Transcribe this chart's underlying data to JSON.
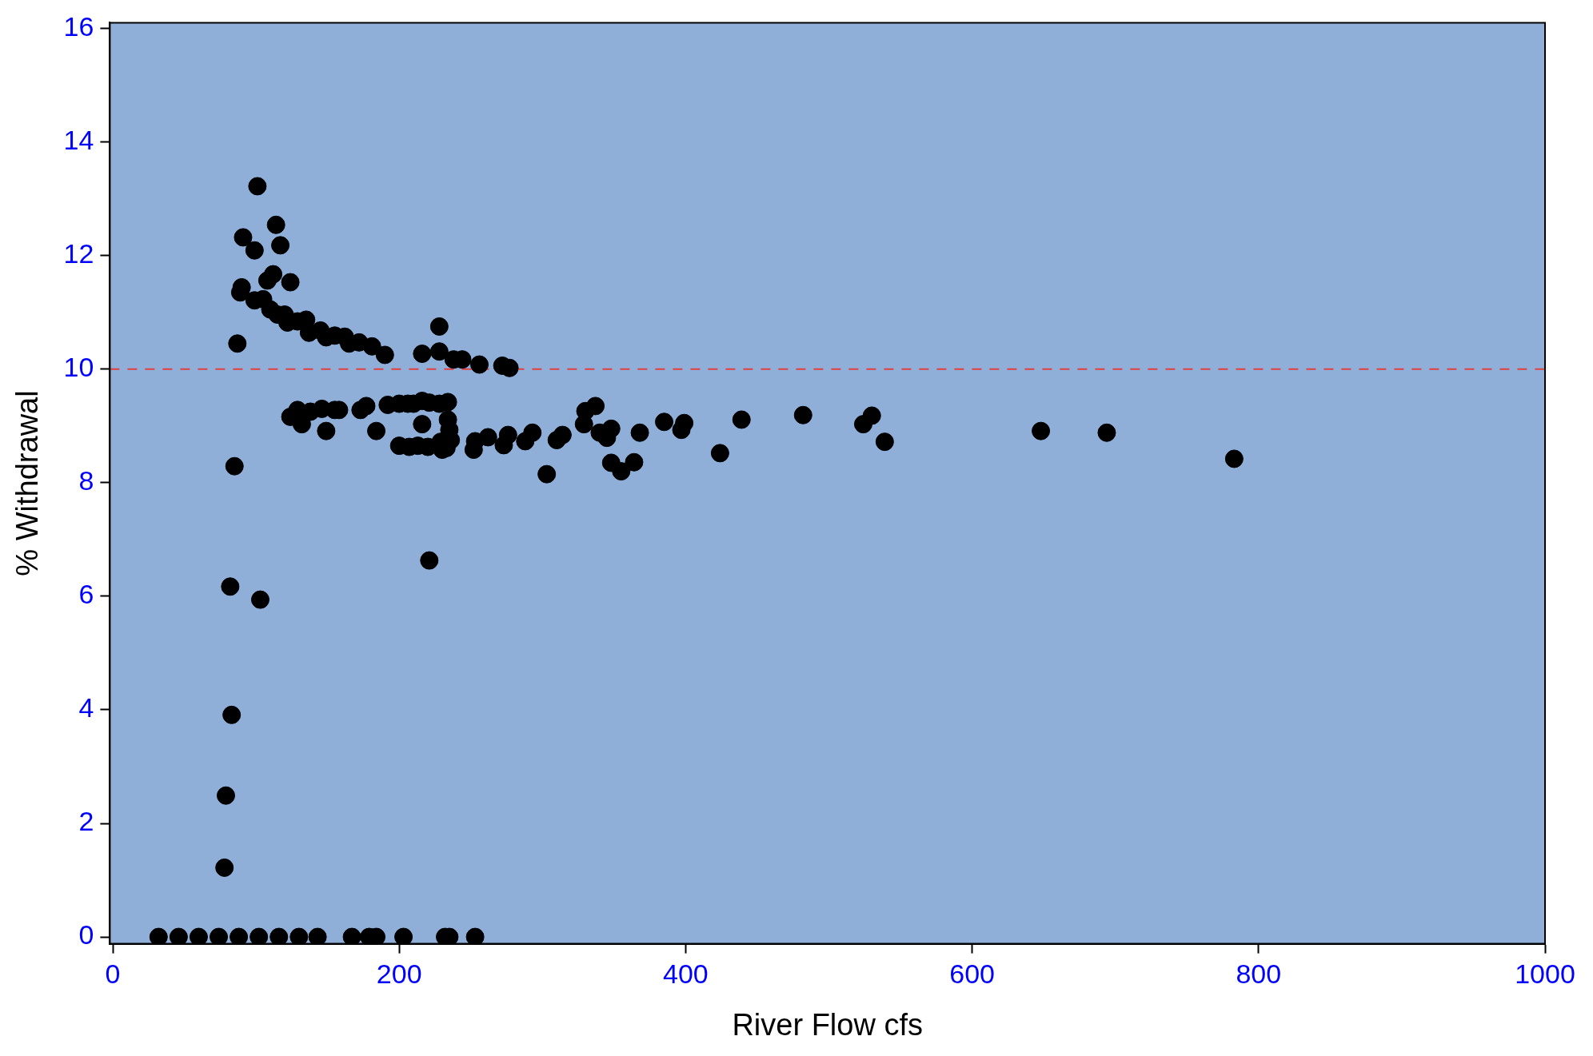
{
  "chart_data": {
    "type": "scatter",
    "xlabel": "River Flow cfs",
    "ylabel": "% Withdrawal",
    "xlim": [
      -2,
      1000
    ],
    "xticks": [
      0,
      200,
      400,
      600,
      800,
      1000
    ],
    "ylim": [
      -0.12,
      16.1
    ],
    "yticks": [
      0,
      2,
      4,
      6,
      8,
      10,
      12,
      14,
      16
    ],
    "grid": false,
    "legend": false,
    "marker": "circle",
    "ref_lines": [
      {
        "axis": "y",
        "value": 10,
        "color": "#e04040",
        "line_style": "dashed"
      }
    ],
    "series": [
      {
        "color": "#000000",
        "x": [
          101,
          91,
          99,
          114,
          117,
          89,
          90,
          112,
          108,
          124,
          99,
          105,
          110,
          115,
          120,
          122,
          129,
          135,
          137,
          145,
          149,
          155,
          162,
          165,
          172,
          181,
          190,
          87,
          216,
          228,
          228,
          238,
          244,
          256,
          272,
          277,
          124,
          129,
          132,
          138,
          146,
          149,
          155,
          158,
          173,
          177,
          184,
          192,
          200,
          206,
          210,
          216,
          221,
          228,
          234,
          216,
          200,
          207,
          213,
          220,
          230,
          234,
          235,
          229,
          236,
          233,
          252,
          253,
          262,
          273,
          276,
          288,
          293,
          303,
          310,
          314,
          329,
          330,
          337,
          340,
          345,
          348,
          348,
          355,
          364,
          368,
          385,
          397,
          399,
          424,
          439,
          482,
          524,
          530,
          539,
          648,
          694,
          783,
          85,
          82,
          103,
          83,
          79,
          78,
          221,
          32,
          46,
          60,
          74,
          88,
          102,
          116,
          130,
          143,
          167,
          179,
          184,
          203,
          232,
          235,
          253
        ],
        "values": [
          13.22,
          12.32,
          12.09,
          12.54,
          12.18,
          11.35,
          11.44,
          11.67,
          11.56,
          11.53,
          11.21,
          11.23,
          11.05,
          10.96,
          10.96,
          10.82,
          10.84,
          10.87,
          10.64,
          10.68,
          10.56,
          10.59,
          10.57,
          10.45,
          10.47,
          10.4,
          10.25,
          10.45,
          10.27,
          10.75,
          10.31,
          10.17,
          10.17,
          10.08,
          10.06,
          10.02,
          9.16,
          9.28,
          9.03,
          9.25,
          9.3,
          8.91,
          9.28,
          9.28,
          9.28,
          9.35,
          8.91,
          9.37,
          9.39,
          9.39,
          9.39,
          9.44,
          9.41,
          9.39,
          9.42,
          9.03,
          8.65,
          8.63,
          8.65,
          8.63,
          8.58,
          9.11,
          8.93,
          8.72,
          8.75,
          8.61,
          8.58,
          8.73,
          8.8,
          8.66,
          8.84,
          8.73,
          8.88,
          8.15,
          8.75,
          8.84,
          9.03,
          9.26,
          9.35,
          8.88,
          8.79,
          8.95,
          8.35,
          8.2,
          8.36,
          8.88,
          9.07,
          8.93,
          9.05,
          8.52,
          9.11,
          9.19,
          9.03,
          9.18,
          8.72,
          8.91,
          8.88,
          8.42,
          8.29,
          6.17,
          5.94,
          3.91,
          2.49,
          1.22,
          6.63,
          0,
          0,
          0,
          0,
          0,
          0,
          0,
          0,
          0,
          0,
          0,
          0,
          0,
          0,
          0,
          0
        ]
      }
    ]
  }
}
